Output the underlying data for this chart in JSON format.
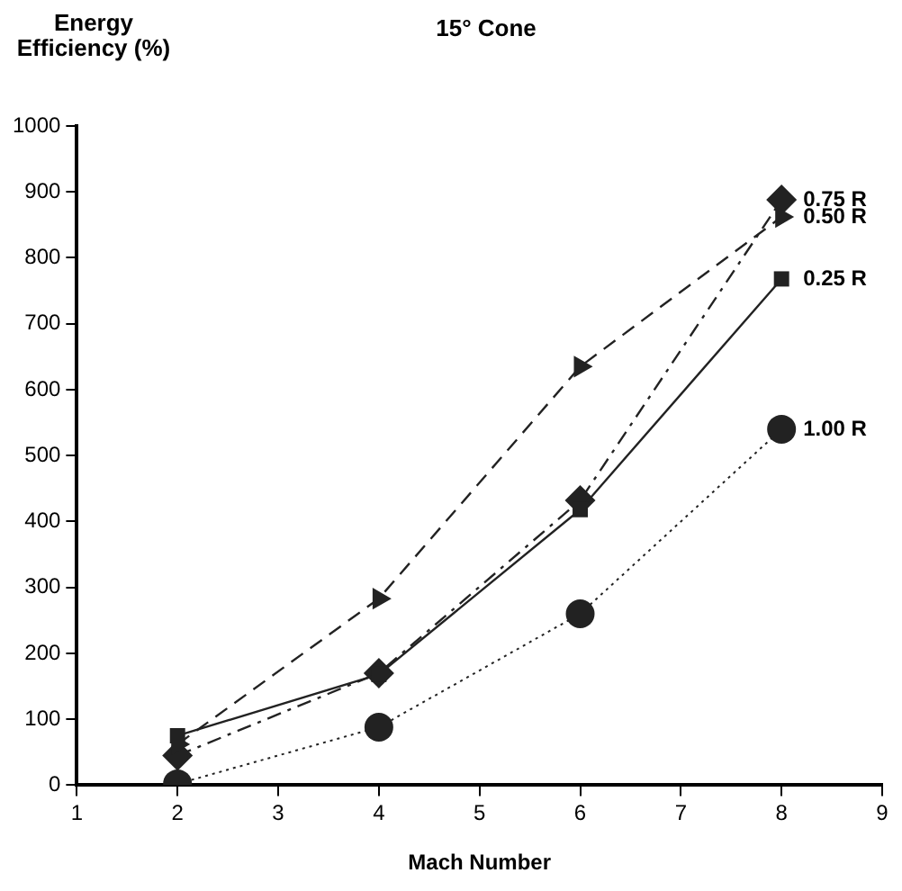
{
  "chart_data": {
    "type": "line",
    "title": "15° Cone",
    "xlabel": "Mach Number",
    "ylabel": "Energy Efficiency (%)",
    "xlim": [
      1,
      9
    ],
    "xticks": [
      1,
      2,
      3,
      4,
      5,
      6,
      7,
      8,
      9
    ],
    "ylim": [
      0,
      1000
    ],
    "yticks": [
      0,
      100,
      200,
      300,
      400,
      500,
      600,
      700,
      800,
      900,
      1000
    ],
    "grid": false,
    "legend": false,
    "series": [
      {
        "name": "0.25 R",
        "color": "#222222",
        "x": [
          2,
          4,
          6,
          8
        ],
        "values": [
          75,
          168,
          418,
          768
        ],
        "marker": "square",
        "line_style": "solid"
      },
      {
        "name": "0.50 R",
        "color": "#222222",
        "x": [
          2,
          4,
          6,
          8
        ],
        "values": [
          62,
          283,
          635,
          862
        ],
        "marker": "triangle",
        "line_style": "dashed"
      },
      {
        "name": "0.75 R",
        "color": "#222222",
        "x": [
          2,
          4,
          6,
          8
        ],
        "values": [
          45,
          170,
          432,
          888
        ],
        "marker": "diamond",
        "line_style": "dashdot"
      },
      {
        "name": "1.00 R",
        "color": "#222222",
        "x": [
          2,
          4,
          6,
          8
        ],
        "values": [
          2,
          88,
          260,
          540
        ],
        "marker": "circle",
        "line_style": "dotted"
      }
    ]
  }
}
